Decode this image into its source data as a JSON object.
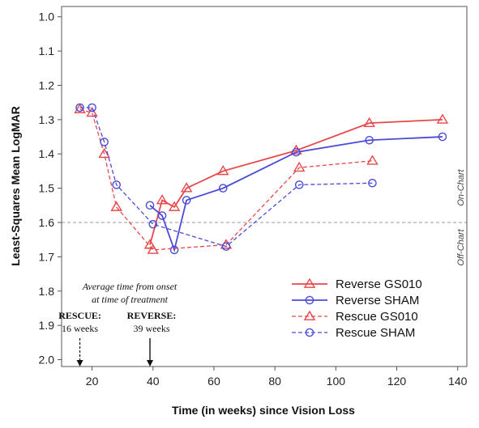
{
  "chart_data": {
    "type": "line",
    "xlabel": "Time (in weeks) since Vision Loss",
    "ylabel": "Least-Squares Mean LogMAR",
    "xlim": [
      10,
      143
    ],
    "ylim": [
      2.02,
      0.97
    ],
    "y_reversed": true,
    "xticks": [
      20,
      40,
      60,
      80,
      100,
      120,
      140
    ],
    "yticks": [
      "1.0",
      "1.1",
      "1.2",
      "1.3",
      "1.4",
      "1.5",
      "1.6",
      "1.7",
      "1.8",
      "1.9",
      "2.0"
    ],
    "threshold": {
      "y": 1.6,
      "above_label": "On-Chart",
      "below_label": "Off-Chart"
    },
    "series": [
      {
        "name": "Reverse GS010",
        "color": "#e8474a",
        "dash": false,
        "marker": "triangle",
        "x": [
          39,
          43,
          47,
          51,
          63,
          87,
          111,
          135
        ],
        "y": [
          1.665,
          1.535,
          1.555,
          1.5,
          1.45,
          1.39,
          1.31,
          1.3
        ]
      },
      {
        "name": "Reverse SHAM",
        "color": "#4b4bd8",
        "dash": false,
        "marker": "circle",
        "x": [
          39,
          43,
          47,
          51,
          63,
          87,
          111,
          135
        ],
        "y": [
          1.55,
          1.58,
          1.68,
          1.535,
          1.5,
          1.395,
          1.36,
          1.35
        ]
      },
      {
        "name": "Rescue GS010",
        "color": "#e8474a",
        "dash": true,
        "marker": "triangle",
        "x": [
          16,
          20,
          24,
          28,
          40,
          64,
          88,
          112
        ],
        "y": [
          1.27,
          1.28,
          1.4,
          1.555,
          1.68,
          1.665,
          1.44,
          1.42
        ]
      },
      {
        "name": "Rescue SHAM",
        "color": "#4b4bd8",
        "dash": true,
        "marker": "circle",
        "x": [
          16,
          20,
          24,
          28,
          40,
          64,
          88,
          112
        ],
        "y": [
          1.265,
          1.265,
          1.365,
          1.49,
          1.605,
          1.67,
          1.49,
          1.485
        ]
      }
    ],
    "annotations": {
      "header_line1": "Average time from onset",
      "header_line2": "at time of treatment",
      "rescue_label": "RESCUE:",
      "rescue_value": "16 weeks",
      "rescue_x": 16,
      "reverse_label": "REVERSE:",
      "reverse_value": "39 weeks",
      "reverse_x": 39
    },
    "legend_position": "bottom-right"
  }
}
